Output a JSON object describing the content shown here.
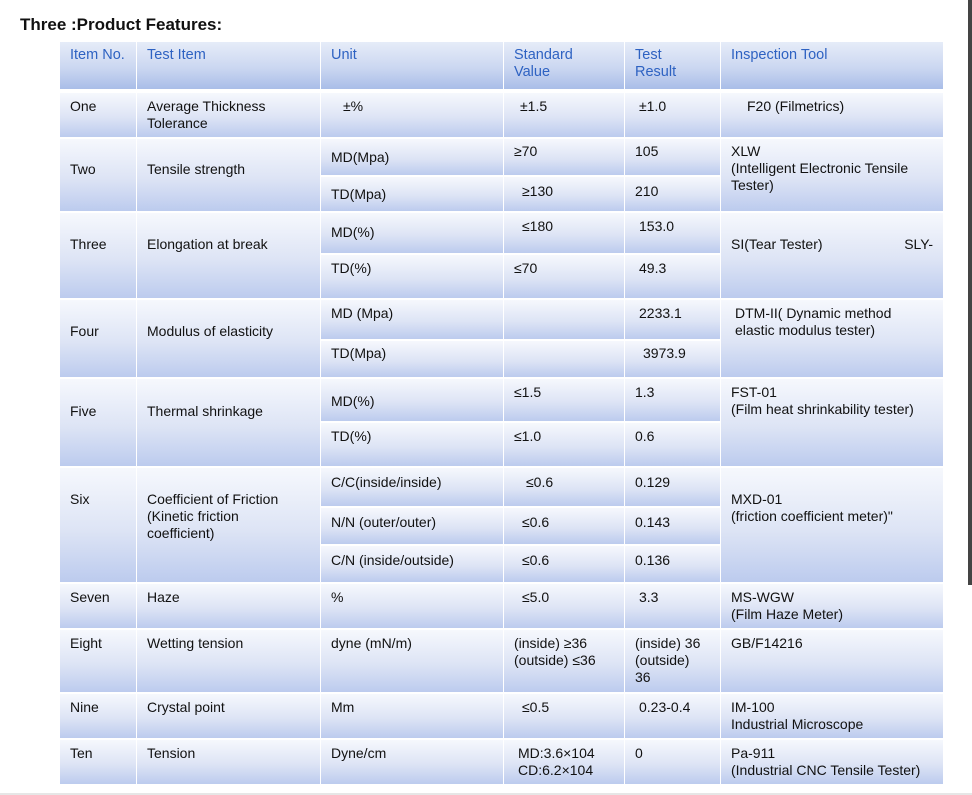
{
  "title": "Three :Product Features:",
  "headers": [
    "Item No.",
    "Test Item",
    "Unit",
    "Standard\nValue",
    "Test\nResult",
    "Inspection Tool"
  ],
  "item_no": [
    "One",
    "Two",
    "Three",
    "Four",
    "Five",
    "Six",
    "Seven",
    "Eight",
    "Nine",
    "Ten"
  ],
  "test_item": [
    "Average Thickness\nTolerance",
    "Tensile strength",
    "Elongation at  break",
    "Modulus of elasticity",
    "Thermal shrinkage",
    "Coefficient of Friction\n (Kinetic friction\ncoefficient)",
    "Haze",
    "Wetting tension",
    "Crystal point",
    "Tension"
  ],
  "unit": [
    "±%",
    "MD(Mpa)",
    "TD(Mpa)",
    "MD(%)",
    "TD(%)",
    "MD (Mpa)",
    "TD(Mpa)",
    "MD(%)",
    "TD(%)",
    "C/C(inside/inside)",
    "N/N (outer/outer)",
    "C/N (inside/outside)",
    "%",
    "dyne (mN/m)",
    "Mm",
    "Dyne/cm"
  ],
  "standard": [
    "±1.5",
    "≥70",
    "≥130",
    "≤180",
    "≤70",
    "",
    "",
    "≤1.5",
    "≤1.0",
    "≤0.6",
    "≤0.6",
    "≤0.6",
    "≤5.0",
    "(inside) ≥36\n(outside) ≤36",
    "≤0.5",
    "MD:3.6×104\nCD:6.2×104"
  ],
  "result": [
    "±1.0",
    "105",
    "210",
    "153.0",
    "49.3",
    "2233.1",
    "3973.9",
    "1.3",
    "0.6",
    "0.129",
    "0.143",
    "0.136",
    "3.3",
    "(inside) 36\n(outside)\n36",
    "0.23-0.4",
    "0"
  ],
  "tool": [
    "F20 (Filmetrics)",
    "XLW\n(Intelligent Electronic Tensile\nTester)",
    "SLY-",
    "SI(Tear Tester)",
    "DTM-II( Dynamic method\nelastic modulus tester)",
    "FST-01\n(Film heat shrinkability tester)",
    "MXD-01\n(friction coefficient meter)\"",
    " MS-WGW\n(Film Haze Meter)",
    "GB/F14216",
    "IM-100\nIndustrial Microscope",
    "Pa-911\n(Industrial CNC Tensile Tester)"
  ]
}
